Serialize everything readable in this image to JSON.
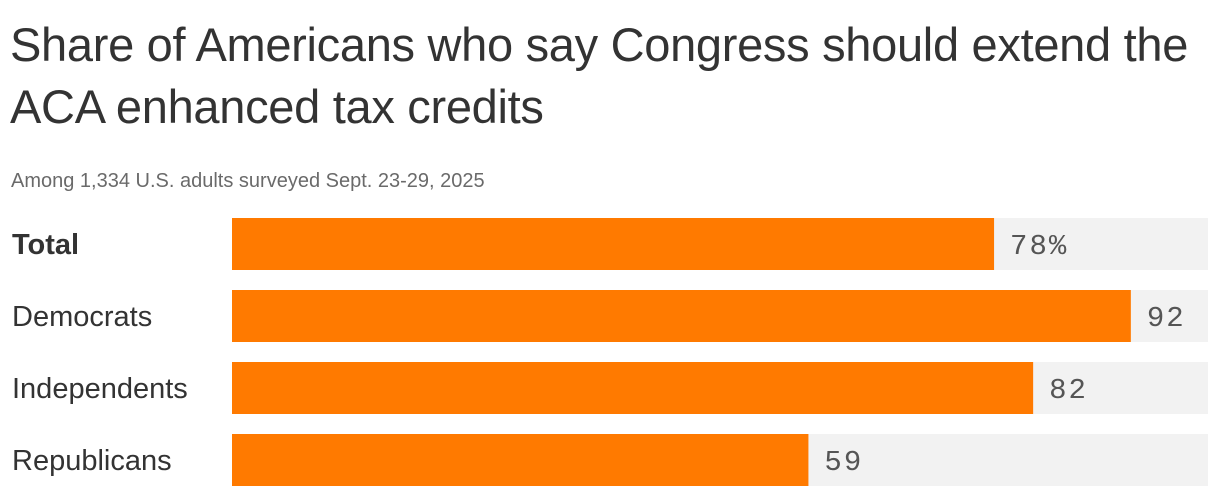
{
  "header": {
    "title": "Share of Americans who say Congress should extend the ACA enhanced tax credits",
    "subtitle": "Among 1,334 U.S. adults surveyed Sept. 23-29, 2025"
  },
  "colors": {
    "bar": "#ff7a00",
    "track": "#f2f2f2",
    "label": "#333333",
    "value": "#555555"
  },
  "chart_data": {
    "type": "bar",
    "orientation": "horizontal",
    "categories": [
      "Total",
      "Democrats",
      "Independents",
      "Republicans"
    ],
    "values": [
      78,
      92,
      82,
      59
    ],
    "value_labels": [
      "78%",
      "92",
      "82",
      "59"
    ],
    "bold_categories": [
      "Total"
    ],
    "xlim": [
      0,
      100
    ],
    "grid": false,
    "legend": "none"
  }
}
